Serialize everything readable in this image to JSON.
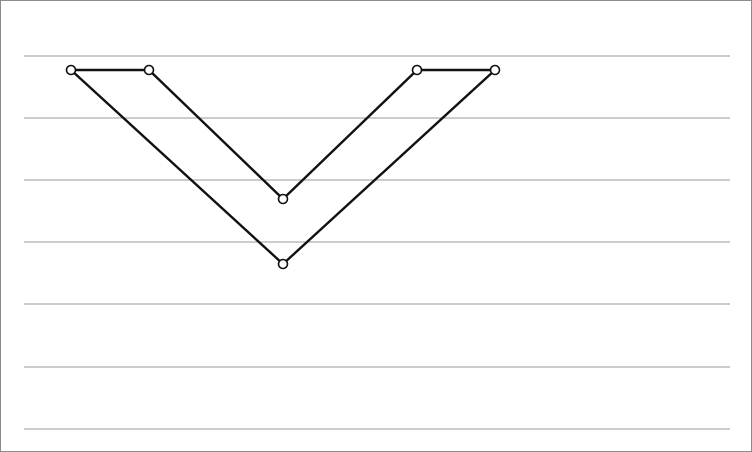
{
  "canvas": {
    "background": "#ffffff",
    "border_color": "#8c8c8c"
  },
  "colors": {
    "guide_line": "#999999",
    "stroke": "#111111",
    "point_fill": "#ffffff"
  },
  "shape": {
    "type": "polyline-with-vertex-handles",
    "closed": true,
    "guide_line_count": 7,
    "vertex_count": 6
  }
}
